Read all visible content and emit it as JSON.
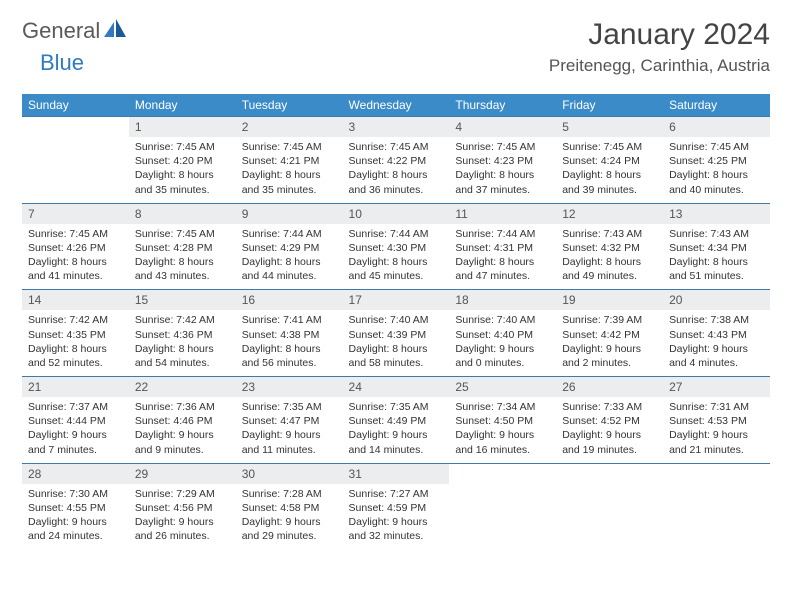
{
  "logo": {
    "part1": "General",
    "part2": "Blue"
  },
  "title": "January 2024",
  "location": "Preitenegg, Carinthia, Austria",
  "colors": {
    "header_bg": "#3b8bc9",
    "daynum_bg": "#ecedee",
    "rule": "#3b7aaa",
    "logo_blue": "#2f7ac0",
    "logo_gray": "#5a5a5a"
  },
  "weekdays": [
    "Sunday",
    "Monday",
    "Tuesday",
    "Wednesday",
    "Thursday",
    "Friday",
    "Saturday"
  ],
  "weeks": [
    [
      {
        "n": "",
        "sunrise": "",
        "sunset": "",
        "daylight": ""
      },
      {
        "n": "1",
        "sunrise": "Sunrise: 7:45 AM",
        "sunset": "Sunset: 4:20 PM",
        "daylight": "Daylight: 8 hours and 35 minutes."
      },
      {
        "n": "2",
        "sunrise": "Sunrise: 7:45 AM",
        "sunset": "Sunset: 4:21 PM",
        "daylight": "Daylight: 8 hours and 35 minutes."
      },
      {
        "n": "3",
        "sunrise": "Sunrise: 7:45 AM",
        "sunset": "Sunset: 4:22 PM",
        "daylight": "Daylight: 8 hours and 36 minutes."
      },
      {
        "n": "4",
        "sunrise": "Sunrise: 7:45 AM",
        "sunset": "Sunset: 4:23 PM",
        "daylight": "Daylight: 8 hours and 37 minutes."
      },
      {
        "n": "5",
        "sunrise": "Sunrise: 7:45 AM",
        "sunset": "Sunset: 4:24 PM",
        "daylight": "Daylight: 8 hours and 39 minutes."
      },
      {
        "n": "6",
        "sunrise": "Sunrise: 7:45 AM",
        "sunset": "Sunset: 4:25 PM",
        "daylight": "Daylight: 8 hours and 40 minutes."
      }
    ],
    [
      {
        "n": "7",
        "sunrise": "Sunrise: 7:45 AM",
        "sunset": "Sunset: 4:26 PM",
        "daylight": "Daylight: 8 hours and 41 minutes."
      },
      {
        "n": "8",
        "sunrise": "Sunrise: 7:45 AM",
        "sunset": "Sunset: 4:28 PM",
        "daylight": "Daylight: 8 hours and 43 minutes."
      },
      {
        "n": "9",
        "sunrise": "Sunrise: 7:44 AM",
        "sunset": "Sunset: 4:29 PM",
        "daylight": "Daylight: 8 hours and 44 minutes."
      },
      {
        "n": "10",
        "sunrise": "Sunrise: 7:44 AM",
        "sunset": "Sunset: 4:30 PM",
        "daylight": "Daylight: 8 hours and 45 minutes."
      },
      {
        "n": "11",
        "sunrise": "Sunrise: 7:44 AM",
        "sunset": "Sunset: 4:31 PM",
        "daylight": "Daylight: 8 hours and 47 minutes."
      },
      {
        "n": "12",
        "sunrise": "Sunrise: 7:43 AM",
        "sunset": "Sunset: 4:32 PM",
        "daylight": "Daylight: 8 hours and 49 minutes."
      },
      {
        "n": "13",
        "sunrise": "Sunrise: 7:43 AM",
        "sunset": "Sunset: 4:34 PM",
        "daylight": "Daylight: 8 hours and 51 minutes."
      }
    ],
    [
      {
        "n": "14",
        "sunrise": "Sunrise: 7:42 AM",
        "sunset": "Sunset: 4:35 PM",
        "daylight": "Daylight: 8 hours and 52 minutes."
      },
      {
        "n": "15",
        "sunrise": "Sunrise: 7:42 AM",
        "sunset": "Sunset: 4:36 PM",
        "daylight": "Daylight: 8 hours and 54 minutes."
      },
      {
        "n": "16",
        "sunrise": "Sunrise: 7:41 AM",
        "sunset": "Sunset: 4:38 PM",
        "daylight": "Daylight: 8 hours and 56 minutes."
      },
      {
        "n": "17",
        "sunrise": "Sunrise: 7:40 AM",
        "sunset": "Sunset: 4:39 PM",
        "daylight": "Daylight: 8 hours and 58 minutes."
      },
      {
        "n": "18",
        "sunrise": "Sunrise: 7:40 AM",
        "sunset": "Sunset: 4:40 PM",
        "daylight": "Daylight: 9 hours and 0 minutes."
      },
      {
        "n": "19",
        "sunrise": "Sunrise: 7:39 AM",
        "sunset": "Sunset: 4:42 PM",
        "daylight": "Daylight: 9 hours and 2 minutes."
      },
      {
        "n": "20",
        "sunrise": "Sunrise: 7:38 AM",
        "sunset": "Sunset: 4:43 PM",
        "daylight": "Daylight: 9 hours and 4 minutes."
      }
    ],
    [
      {
        "n": "21",
        "sunrise": "Sunrise: 7:37 AM",
        "sunset": "Sunset: 4:44 PM",
        "daylight": "Daylight: 9 hours and 7 minutes."
      },
      {
        "n": "22",
        "sunrise": "Sunrise: 7:36 AM",
        "sunset": "Sunset: 4:46 PM",
        "daylight": "Daylight: 9 hours and 9 minutes."
      },
      {
        "n": "23",
        "sunrise": "Sunrise: 7:35 AM",
        "sunset": "Sunset: 4:47 PM",
        "daylight": "Daylight: 9 hours and 11 minutes."
      },
      {
        "n": "24",
        "sunrise": "Sunrise: 7:35 AM",
        "sunset": "Sunset: 4:49 PM",
        "daylight": "Daylight: 9 hours and 14 minutes."
      },
      {
        "n": "25",
        "sunrise": "Sunrise: 7:34 AM",
        "sunset": "Sunset: 4:50 PM",
        "daylight": "Daylight: 9 hours and 16 minutes."
      },
      {
        "n": "26",
        "sunrise": "Sunrise: 7:33 AM",
        "sunset": "Sunset: 4:52 PM",
        "daylight": "Daylight: 9 hours and 19 minutes."
      },
      {
        "n": "27",
        "sunrise": "Sunrise: 7:31 AM",
        "sunset": "Sunset: 4:53 PM",
        "daylight": "Daylight: 9 hours and 21 minutes."
      }
    ],
    [
      {
        "n": "28",
        "sunrise": "Sunrise: 7:30 AM",
        "sunset": "Sunset: 4:55 PM",
        "daylight": "Daylight: 9 hours and 24 minutes."
      },
      {
        "n": "29",
        "sunrise": "Sunrise: 7:29 AM",
        "sunset": "Sunset: 4:56 PM",
        "daylight": "Daylight: 9 hours and 26 minutes."
      },
      {
        "n": "30",
        "sunrise": "Sunrise: 7:28 AM",
        "sunset": "Sunset: 4:58 PM",
        "daylight": "Daylight: 9 hours and 29 minutes."
      },
      {
        "n": "31",
        "sunrise": "Sunrise: 7:27 AM",
        "sunset": "Sunset: 4:59 PM",
        "daylight": "Daylight: 9 hours and 32 minutes."
      },
      {
        "n": "",
        "sunrise": "",
        "sunset": "",
        "daylight": ""
      },
      {
        "n": "",
        "sunrise": "",
        "sunset": "",
        "daylight": ""
      },
      {
        "n": "",
        "sunrise": "",
        "sunset": "",
        "daylight": ""
      }
    ]
  ]
}
